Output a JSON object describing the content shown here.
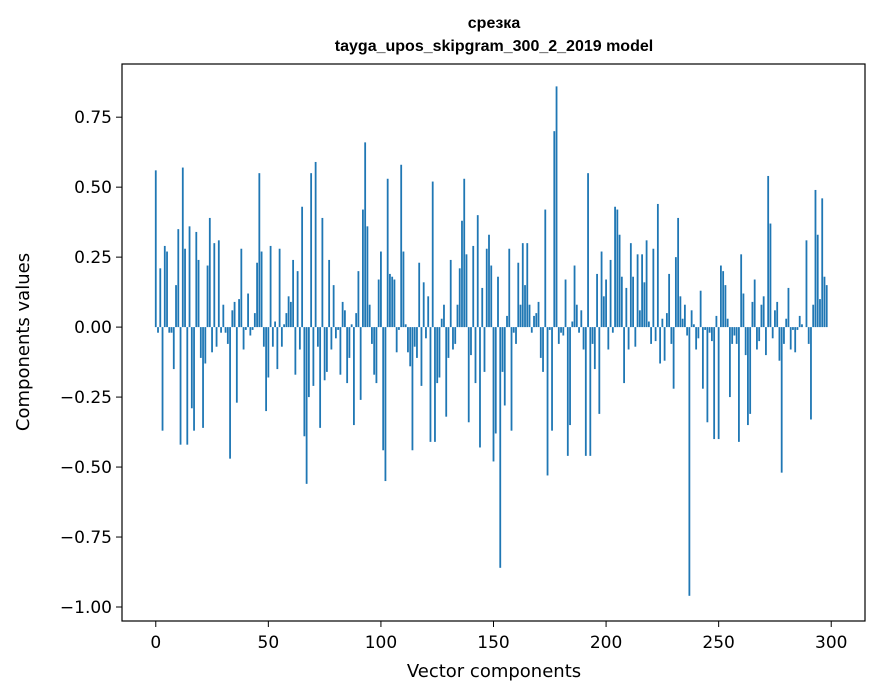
{
  "chart_data": {
    "type": "bar",
    "title": "срезка",
    "subtitle": "tayga_upos_skipgram_300_2_2019 model",
    "xlabel": "Vector components",
    "ylabel": "Components values",
    "xlim": [
      -15,
      315
    ],
    "ylim": [
      -1.05,
      0.94
    ],
    "xticks": [
      0,
      50,
      100,
      150,
      200,
      250,
      300
    ],
    "xtick_labels": [
      "0",
      "50",
      "100",
      "150",
      "200",
      "250",
      "300"
    ],
    "yticks": [
      0.75,
      0.5,
      0.25,
      0.0,
      -0.25,
      -0.5,
      -0.75,
      -1.0
    ],
    "ytick_labels": [
      "0.75",
      "0.50",
      "0.25",
      "0.00",
      "−0.25",
      "−0.50",
      "−0.75",
      "−1.00"
    ],
    "grid": false,
    "legend": "none",
    "bar_color": "#1f77b4",
    "x": "0..299",
    "values": [
      0.56,
      -0.02,
      0.21,
      -0.37,
      0.29,
      0.27,
      -0.02,
      -0.02,
      -0.15,
      0.15,
      0.35,
      -0.42,
      0.57,
      0.28,
      -0.42,
      0.36,
      -0.29,
      -0.37,
      0.34,
      0.24,
      -0.11,
      -0.36,
      -0.13,
      0.22,
      0.39,
      -0.09,
      0.3,
      -0.07,
      0.31,
      -0.02,
      0.08,
      -0.02,
      -0.06,
      -0.47,
      0.06,
      0.09,
      -0.27,
      0.1,
      0.28,
      -0.08,
      -0.01,
      0.12,
      -0.03,
      -0.01,
      0.05,
      0.23,
      0.55,
      0.27,
      -0.07,
      -0.3,
      -0.18,
      0.29,
      -0.07,
      0.02,
      -0.15,
      0.28,
      -0.07,
      0.01,
      0.05,
      0.11,
      0.09,
      0.24,
      -0.17,
      0.2,
      -0.08,
      0.43,
      -0.39,
      -0.56,
      -0.25,
      0.55,
      -0.21,
      0.59,
      -0.07,
      -0.36,
      0.39,
      -0.19,
      -0.16,
      0.24,
      -0.08,
      0.15,
      -0.04,
      -0.01,
      -0.17,
      0.09,
      0.06,
      -0.2,
      -0.11,
      0.01,
      -0.35,
      0.05,
      0.2,
      -0.26,
      0.42,
      0.66,
      0.36,
      0.08,
      -0.06,
      -0.17,
      -0.2,
      0.17,
      0.27,
      -0.44,
      -0.55,
      0.53,
      0.19,
      0.18,
      0.17,
      -0.09,
      -0.01,
      0.58,
      0.27,
      0.01,
      -0.09,
      -0.14,
      -0.44,
      -0.07,
      -0.11,
      0.23,
      -0.21,
      0.16,
      -0.04,
      0.11,
      -0.41,
      0.52,
      -0.41,
      -0.2,
      -0.18,
      0.03,
      0.08,
      -0.32,
      -0.11,
      0.24,
      -0.08,
      -0.06,
      0.08,
      0.21,
      0.38,
      0.53,
      0.26,
      -0.34,
      -0.1,
      0.29,
      -0.2,
      0.4,
      -0.43,
      0.14,
      -0.16,
      0.28,
      0.33,
      0.22,
      -0.48,
      -0.38,
      0.18,
      -0.86,
      -0.16,
      -0.28,
      0.04,
      0.28,
      -0.37,
      -0.02,
      -0.06,
      0.23,
      0.08,
      0.3,
      0.15,
      0.3,
      0.08,
      -0.02,
      0.04,
      0.05,
      0.09,
      -0.11,
      -0.16,
      0.42,
      -0.53,
      -0.01,
      -0.37,
      0.7,
      0.86,
      -0.06,
      -0.02,
      -0.03,
      0.17,
      -0.46,
      -0.35,
      0.02,
      0.22,
      0.08,
      -0.02,
      0.06,
      -0.08,
      -0.46,
      0.55,
      -0.46,
      -0.06,
      -0.15,
      0.19,
      -0.31,
      0.27,
      0.11,
      0.17,
      -0.08,
      0.24,
      -0.02,
      0.43,
      0.42,
      0.33,
      0.18,
      -0.2,
      0.14,
      -0.08,
      0.3,
      0.18,
      -0.07,
      0.26,
      0.06,
      0.26,
      0.16,
      0.31,
      0.02,
      -0.06,
      0.28,
      -0.05,
      0.44,
      -0.13,
      0.03,
      -0.12,
      0.05,
      0.19,
      -0.06,
      -0.22,
      0.25,
      0.39,
      0.11,
      0.03,
      0.08,
      -0.03,
      -0.96,
      0.06,
      0.01,
      -0.08,
      -0.04,
      0.13,
      -0.22,
      -0.01,
      -0.34,
      -0.02,
      -0.05,
      -0.4,
      0.04,
      -0.4,
      0.22,
      0.2,
      0.15,
      0.03,
      -0.25,
      -0.06,
      -0.03,
      -0.06,
      -0.41,
      0.26,
      0.12,
      -0.1,
      -0.35,
      -0.31,
      0.09,
      0.17,
      -0.08,
      -0.05,
      0.08,
      0.11,
      -0.1,
      0.54,
      0.37,
      -0.04,
      0.06,
      0.09,
      -0.12,
      -0.52,
      -0.06,
      0.03,
      0.14,
      -0.08,
      -0.01,
      -0.09,
      -0.01,
      0.04,
      0.01,
      0.0,
      0.31,
      -0.06,
      -0.33,
      0.08,
      0.49,
      0.33,
      0.1,
      0.46,
      0.18,
      0.15,
      0.0
    ]
  }
}
